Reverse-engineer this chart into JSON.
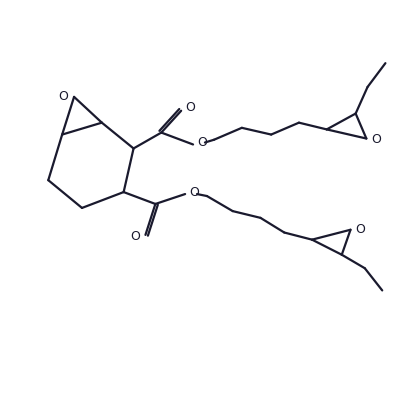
{
  "bg_color": "#ffffff",
  "line_color": "#1a1a2e",
  "line_width": 1.6,
  "figsize": [
    3.98,
    4.0
  ],
  "dpi": 100,
  "xlim": [
    0,
    10
  ],
  "ylim": [
    0,
    10
  ]
}
